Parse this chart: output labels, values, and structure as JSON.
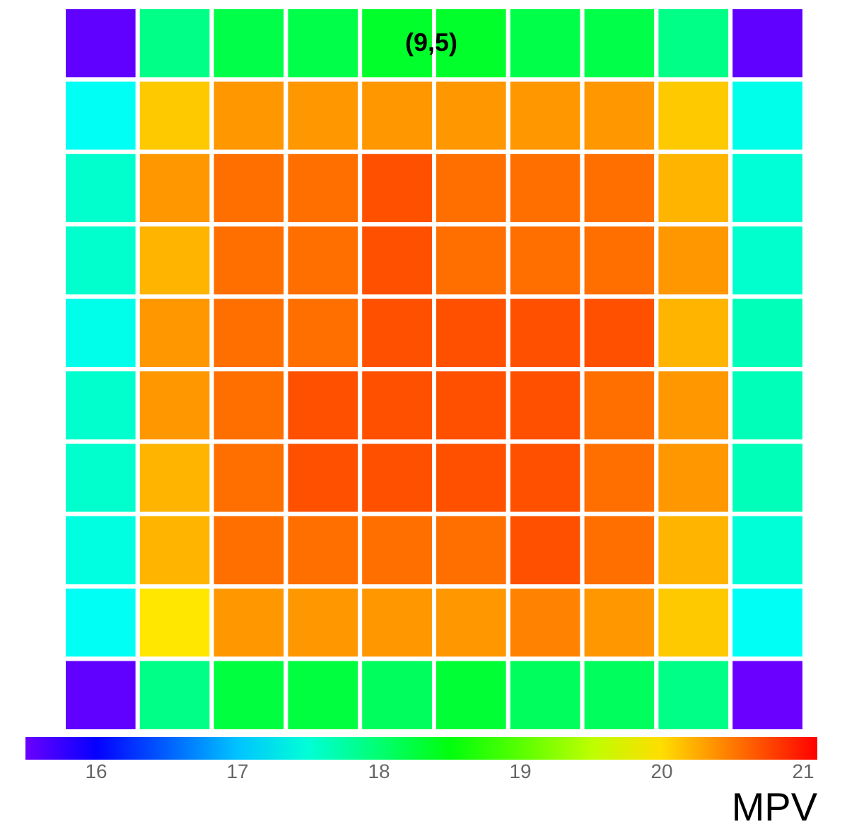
{
  "chart_data": {
    "type": "heatmap",
    "clabel": "MPV",
    "annotations": [
      "(9,5)"
    ],
    "categories": [
      null,
      null,
      null,
      null,
      null,
      null,
      null,
      null,
      null,
      null
    ],
    "y_categories": [
      null,
      null,
      null,
      null,
      null,
      null,
      null,
      null,
      null,
      null
    ],
    "clim": [
      15.5,
      21.1
    ],
    "cticks": [
      16,
      17,
      18,
      19,
      20,
      21
    ],
    "cells": [
      [
        15.55,
        17.9,
        18.2,
        18.2,
        18.35,
        18.35,
        18.2,
        18.2,
        17.9,
        15.55
      ],
      [
        17.35,
        20.1,
        20.35,
        20.35,
        20.35,
        20.35,
        20.35,
        20.35,
        20.1,
        17.4
      ],
      [
        17.55,
        20.35,
        20.55,
        20.55,
        20.7,
        20.55,
        20.55,
        20.55,
        20.2,
        17.5
      ],
      [
        17.55,
        20.2,
        20.55,
        20.55,
        20.7,
        20.55,
        20.55,
        20.55,
        20.35,
        17.55
      ],
      [
        17.4,
        20.35,
        20.55,
        20.55,
        20.7,
        20.7,
        20.7,
        20.7,
        20.2,
        17.65
      ],
      [
        17.55,
        20.35,
        20.55,
        20.7,
        20.7,
        20.7,
        20.7,
        20.55,
        20.35,
        17.65
      ],
      [
        17.55,
        20.2,
        20.55,
        20.7,
        20.7,
        20.7,
        20.7,
        20.55,
        20.35,
        17.65
      ],
      [
        17.45,
        20.2,
        20.55,
        20.55,
        20.55,
        20.55,
        20.7,
        20.55,
        20.2,
        17.5
      ],
      [
        17.35,
        19.95,
        20.35,
        20.35,
        20.35,
        20.35,
        20.45,
        20.35,
        20.1,
        17.35
      ],
      [
        15.55,
        17.9,
        18.25,
        18.25,
        18.1,
        18.3,
        18.1,
        18.1,
        17.9,
        15.5
      ]
    ]
  }
}
